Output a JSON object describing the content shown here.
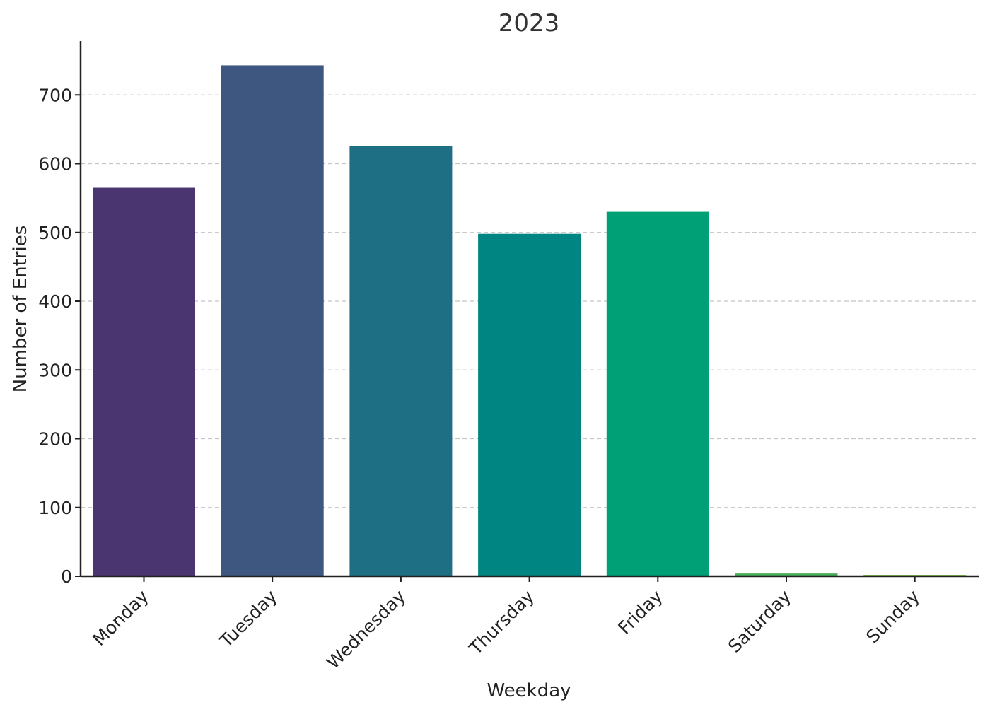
{
  "chart_data": {
    "type": "bar",
    "title": "2023",
    "xlabel": "Weekday",
    "ylabel": "Number of Entries",
    "categories": [
      "Monday",
      "Tuesday",
      "Wednesday",
      "Thursday",
      "Friday",
      "Saturday",
      "Sunday"
    ],
    "values": [
      565,
      743,
      626,
      498,
      530,
      4,
      2
    ],
    "colors": [
      "#4b3570",
      "#3e5780",
      "#1f6f84",
      "#008582",
      "#00a077",
      "#4ab05d",
      "#82bc46"
    ],
    "yticks": [
      "0",
      "100",
      "200",
      "300",
      "400",
      "500",
      "600",
      "700"
    ],
    "ylim": [
      0,
      780
    ],
    "grid": true,
    "legend": "none"
  }
}
